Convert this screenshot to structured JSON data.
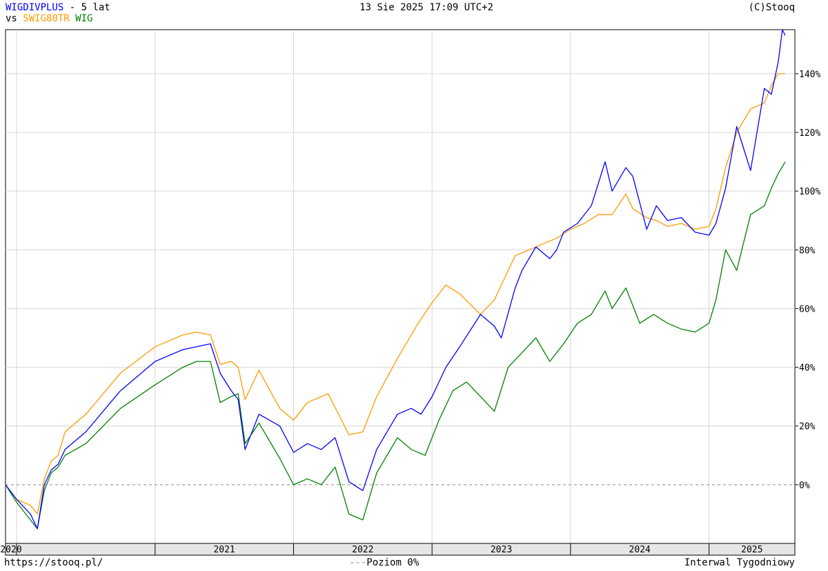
{
  "header": {
    "main_series": "WIGDIVPLUS",
    "period": " - 5 lat",
    "vs": "vs ",
    "compare": [
      "SWIG80TR",
      "WIG"
    ],
    "date": "13 Sie 2025 17:09 UTC+2",
    "copyright": "(C)Stooq"
  },
  "footer": {
    "url": "https://stooq.pl/",
    "level_prefix": "---",
    "level_label": "Poziom 0%",
    "interval": "Interwal Tygodniowy"
  },
  "colors": {
    "WIGDIVPLUS": "#0000ff",
    "SWIG80TR": "#ff9900",
    "WIG": "#008000",
    "grid": "#d6d6d6",
    "zero_line": "#888888"
  },
  "chart_data": {
    "type": "line",
    "title": "WIGDIVPLUS - 5 lat",
    "xlabel": "",
    "ylabel": "",
    "ylim": [
      -20,
      155
    ],
    "x_range": [
      2019.92,
      2025.62
    ],
    "yticks": [
      0,
      20,
      40,
      60,
      80,
      100,
      120,
      140
    ],
    "ytick_labels": [
      "0%",
      "20%",
      "40%",
      "60%",
      "80%",
      "100%",
      "120%",
      "140%"
    ],
    "xticks": [
      2020,
      2021,
      2022,
      2023,
      2024,
      2025
    ],
    "xtick_labels": [
      "2020",
      "2021",
      "2022",
      "2023",
      "2024",
      "2025"
    ],
    "grid": true,
    "legend": "top-left",
    "reference_line": {
      "y": 0,
      "label": "Poziom 0%"
    },
    "series": [
      {
        "name": "WIGDIVPLUS",
        "x": [
          2019.92,
          2020.0,
          2020.1,
          2020.15,
          2020.2,
          2020.25,
          2020.3,
          2020.35,
          2020.5,
          2020.75,
          2021.0,
          2021.2,
          2021.3,
          2021.4,
          2021.47,
          2021.55,
          2021.6,
          2021.65,
          2021.75,
          2021.9,
          2022.0,
          2022.1,
          2022.2,
          2022.3,
          2022.4,
          2022.5,
          2022.6,
          2022.75,
          2022.85,
          2022.92,
          2023.0,
          2023.1,
          2023.2,
          2023.35,
          2023.45,
          2023.5,
          2023.6,
          2023.65,
          2023.75,
          2023.85,
          2023.9,
          2023.95,
          2024.05,
          2024.15,
          2024.25,
          2024.3,
          2024.4,
          2024.45,
          2024.55,
          2024.62,
          2024.7,
          2024.8,
          2024.9,
          2025.0,
          2025.05,
          2025.12,
          2025.2,
          2025.3,
          2025.4,
          2025.45,
          2025.5,
          2025.53,
          2025.55
        ],
        "values": [
          0,
          -5,
          -10,
          -15,
          0,
          5,
          7,
          12,
          18,
          32,
          42,
          46,
          47,
          48,
          38,
          32,
          29,
          12,
          24,
          20,
          11,
          14,
          12,
          16,
          1,
          -2,
          12,
          24,
          26,
          24,
          30,
          40,
          47,
          58,
          54,
          50,
          67,
          73,
          81,
          77,
          80,
          86,
          89,
          95,
          110,
          100,
          108,
          105,
          87,
          95,
          90,
          91,
          86,
          85,
          89,
          101,
          122,
          107,
          135,
          133,
          144,
          155,
          153
        ]
      },
      {
        "name": "SWIG80TR",
        "x": [
          2019.92,
          2020.0,
          2020.1,
          2020.15,
          2020.2,
          2020.25,
          2020.3,
          2020.35,
          2020.5,
          2020.75,
          2021.0,
          2021.2,
          2021.3,
          2021.4,
          2021.47,
          2021.55,
          2021.6,
          2021.65,
          2021.75,
          2021.9,
          2022.0,
          2022.1,
          2022.25,
          2022.4,
          2022.5,
          2022.6,
          2022.75,
          2022.9,
          2023.0,
          2023.1,
          2023.2,
          2023.35,
          2023.45,
          2023.5,
          2023.6,
          2023.7,
          2023.8,
          2023.9,
          2024.0,
          2024.1,
          2024.2,
          2024.3,
          2024.4,
          2024.45,
          2024.55,
          2024.62,
          2024.7,
          2024.8,
          2024.9,
          2025.0,
          2025.05,
          2025.12,
          2025.2,
          2025.3,
          2025.4,
          2025.45,
          2025.5,
          2025.55
        ],
        "values": [
          0,
          -5,
          -7,
          -10,
          2,
          8,
          10,
          18,
          24,
          38,
          47,
          51,
          52,
          51,
          41,
          42,
          40,
          29,
          39,
          26,
          22,
          28,
          31,
          17,
          18,
          30,
          43,
          55,
          62,
          68,
          65,
          58,
          63,
          68,
          78,
          80,
          82,
          84,
          87,
          89,
          92,
          92,
          99,
          94,
          91,
          90,
          88,
          89,
          87,
          88,
          94,
          108,
          120,
          128,
          130,
          136,
          140,
          140
        ]
      },
      {
        "name": "WIG",
        "x": [
          2019.92,
          2020.0,
          2020.1,
          2020.15,
          2020.2,
          2020.25,
          2020.3,
          2020.35,
          2020.5,
          2020.75,
          2021.0,
          2021.2,
          2021.3,
          2021.4,
          2021.47,
          2021.55,
          2021.6,
          2021.65,
          2021.75,
          2021.9,
          2022.0,
          2022.1,
          2022.2,
          2022.3,
          2022.4,
          2022.5,
          2022.6,
          2022.75,
          2022.85,
          2022.95,
          2023.05,
          2023.15,
          2023.25,
          2023.35,
          2023.45,
          2023.55,
          2023.65,
          2023.75,
          2023.85,
          2023.95,
          2024.05,
          2024.15,
          2024.25,
          2024.3,
          2024.4,
          2024.5,
          2024.6,
          2024.7,
          2024.8,
          2024.9,
          2025.0,
          2025.05,
          2025.12,
          2025.2,
          2025.3,
          2025.4,
          2025.45,
          2025.5,
          2025.55
        ],
        "values": [
          0,
          -6,
          -12,
          -15,
          -2,
          4,
          6,
          10,
          14,
          26,
          34,
          40,
          42,
          42,
          28,
          30,
          31,
          14,
          21,
          9,
          0,
          2,
          0,
          6,
          -10,
          -12,
          4,
          16,
          12,
          10,
          22,
          32,
          35,
          30,
          25,
          40,
          45,
          50,
          42,
          48,
          55,
          58,
          66,
          60,
          67,
          55,
          58,
          55,
          53,
          52,
          55,
          63,
          80,
          73,
          92,
          95,
          101,
          106,
          110
        ]
      }
    ]
  }
}
